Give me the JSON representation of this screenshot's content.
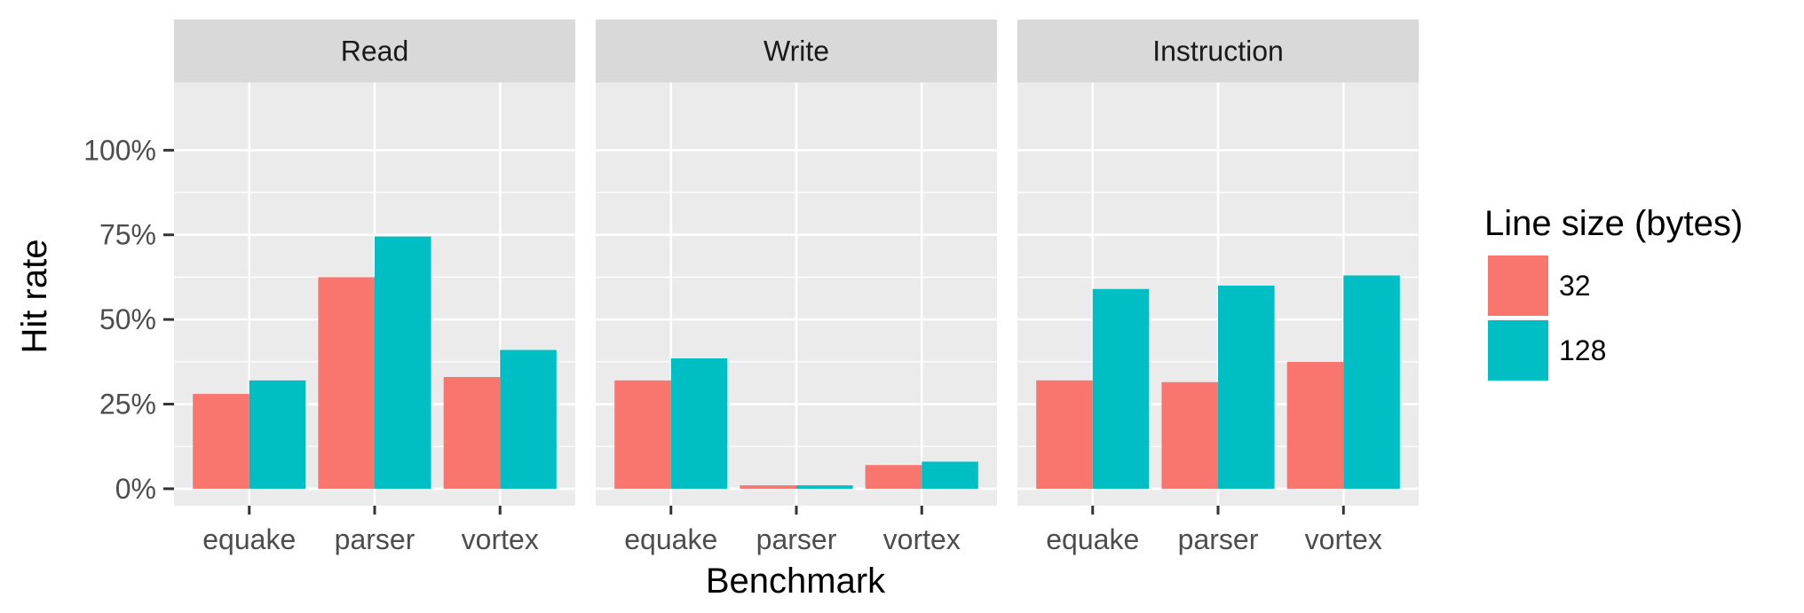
{
  "chart_data": {
    "type": "bar",
    "facets": [
      "Read",
      "Write",
      "Instruction"
    ],
    "categories": [
      "equake",
      "parser",
      "vortex"
    ],
    "series": [
      {
        "name": "32",
        "color": "#f8766d",
        "values": {
          "Read": [
            28,
            62.5,
            33
          ],
          "Write": [
            32,
            1,
            7
          ],
          "Instruction": [
            32,
            31.5,
            37.5
          ]
        }
      },
      {
        "name": "128",
        "color": "#00bfc4",
        "values": {
          "Read": [
            32,
            74.5,
            41
          ],
          "Write": [
            38.5,
            1,
            8
          ],
          "Instruction": [
            59,
            60,
            63
          ]
        }
      }
    ],
    "ylim": [
      -5,
      120
    ],
    "yticks": [
      0,
      25,
      50,
      75,
      100
    ],
    "ytick_labels": [
      "0%",
      "25%",
      "50%",
      "75%",
      "100%"
    ],
    "xlabel": "Benchmark",
    "ylabel": "Hit rate",
    "legend_title": "Line size (bytes)",
    "legend_labels": [
      "32",
      "128"
    ],
    "legend_position": "right",
    "grid": true
  }
}
